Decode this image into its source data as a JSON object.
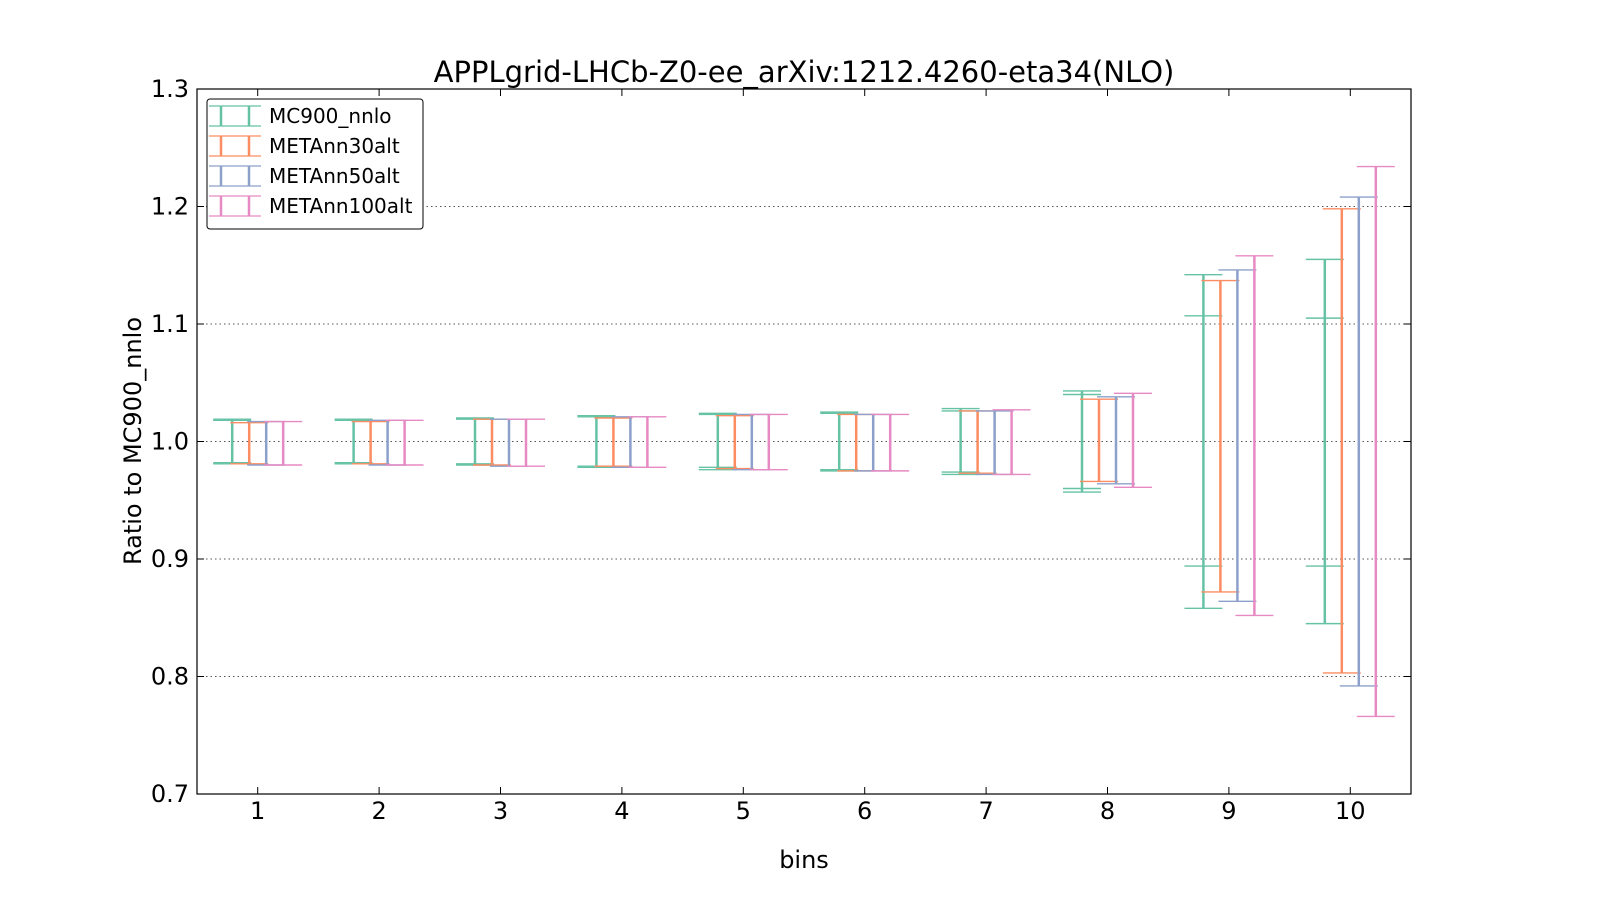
{
  "chart_data": {
    "type": "errorbar",
    "title": "APPLgrid-LHCb-Z0-ee_arXiv:1212.4260-eta34(NLO)",
    "xlabel": "bins",
    "ylabel": "Ratio to MC900_nnlo",
    "categories": [
      "1",
      "2",
      "3",
      "4",
      "5",
      "6",
      "7",
      "8",
      "9",
      "10"
    ],
    "xlim": [
      0.5,
      10.5
    ],
    "ylim": [
      0.7,
      1.3
    ],
    "yticks": [
      "0.7",
      "0.8",
      "0.9",
      "1.0",
      "1.1",
      "1.2",
      "1.3"
    ],
    "grid": "horizontal dotted",
    "legend_position": "top-left",
    "series": [
      {
        "name": "MC900_nnlo",
        "color": "#66c2a5",
        "offset": -0.21,
        "low": [
          0.981,
          0.981,
          0.98,
          0.978,
          0.976,
          0.975,
          0.972,
          0.957,
          0.858,
          0.845
        ],
        "high": [
          1.019,
          1.019,
          1.02,
          1.022,
          1.024,
          1.025,
          1.028,
          1.043,
          1.142,
          1.155
        ],
        "inner_low": [
          0.982,
          0.982,
          0.981,
          0.979,
          0.978,
          0.976,
          0.974,
          0.96,
          0.894,
          0.894
        ],
        "inner_high": [
          1.018,
          1.018,
          1.019,
          1.021,
          1.023,
          1.024,
          1.026,
          1.04,
          1.107,
          1.105
        ]
      },
      {
        "name": "METAnn30alt",
        "color": "#fc8d62",
        "offset": -0.07,
        "low": [
          0.981,
          0.981,
          0.98,
          0.979,
          0.977,
          0.975,
          0.973,
          0.966,
          0.872,
          0.803
        ],
        "high": [
          1.016,
          1.017,
          1.019,
          1.02,
          1.022,
          1.023,
          1.026,
          1.036,
          1.137,
          1.198
        ]
      },
      {
        "name": "METAnn50alt",
        "color": "#8da0cb",
        "offset": 0.07,
        "low": [
          0.98,
          0.98,
          0.979,
          0.978,
          0.976,
          0.975,
          0.972,
          0.964,
          0.864,
          0.792
        ],
        "high": [
          1.017,
          1.018,
          1.019,
          1.021,
          1.023,
          1.023,
          1.026,
          1.038,
          1.146,
          1.208
        ]
      },
      {
        "name": "METAnn100alt",
        "color": "#e78ac3",
        "offset": 0.21,
        "low": [
          0.98,
          0.98,
          0.979,
          0.978,
          0.976,
          0.975,
          0.972,
          0.961,
          0.852,
          0.766
        ],
        "high": [
          1.017,
          1.018,
          1.019,
          1.021,
          1.023,
          1.023,
          1.027,
          1.041,
          1.158,
          1.234
        ]
      }
    ]
  }
}
